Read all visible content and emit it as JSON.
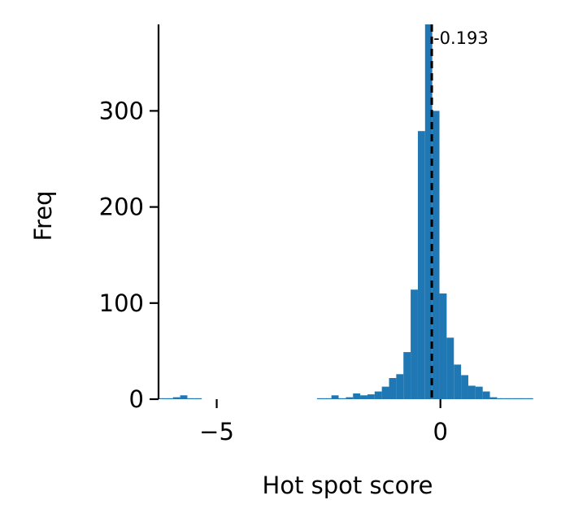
{
  "chart_data": {
    "type": "bar",
    "xlabel": "Hot spot score",
    "ylabel": "Freq",
    "xlim": [
      -6.3,
      2.15
    ],
    "ylim": [
      0,
      390
    ],
    "xticks": [
      {
        "value": -5,
        "label": "−5"
      },
      {
        "value": 0,
        "label": "0"
      }
    ],
    "yticks": [
      {
        "value": 0,
        "label": "0"
      },
      {
        "value": 100,
        "label": "100"
      },
      {
        "value": 200,
        "label": "200"
      },
      {
        "value": 300,
        "label": "300"
      }
    ],
    "bin_width": 0.161,
    "bin_starts": [
      -6.3,
      -6.139,
      -5.978,
      -5.817,
      -5.656,
      -5.495,
      -5.334,
      -5.173,
      -5.012,
      -4.851,
      -4.69,
      -4.529,
      -4.368,
      -4.207,
      -4.046,
      -3.885,
      -3.724,
      -3.563,
      -3.402,
      -3.241,
      -3.08,
      -2.919,
      -2.758,
      -2.597,
      -2.436,
      -2.275,
      -2.114,
      -1.953,
      -1.792,
      -1.631,
      -1.47,
      -1.309,
      -1.148,
      -0.987,
      -0.826,
      -0.665,
      -0.504,
      -0.343,
      -0.182,
      -0.021,
      0.14,
      0.301,
      0.462,
      0.623,
      0.784,
      0.945,
      1.106,
      1.267,
      1.428,
      1.589,
      1.75,
      1.911
    ],
    "values": [
      1,
      1,
      2,
      4,
      1,
      1,
      0,
      0,
      0,
      0,
      0,
      0,
      0,
      0,
      0,
      0,
      0,
      0,
      0,
      0,
      0,
      0,
      1,
      1,
      4,
      1,
      2,
      6,
      4,
      5,
      8,
      13,
      22,
      26,
      49,
      114,
      279,
      390,
      300,
      110,
      64,
      36,
      25,
      14,
      13,
      8,
      2,
      1,
      1,
      1,
      1,
      1
    ],
    "bar_color": "#1f77b4",
    "reference_line": {
      "x": -0.193,
      "label": "-0.193",
      "style": "dashed",
      "color": "#000000"
    },
    "grid": false,
    "legend": "none"
  }
}
